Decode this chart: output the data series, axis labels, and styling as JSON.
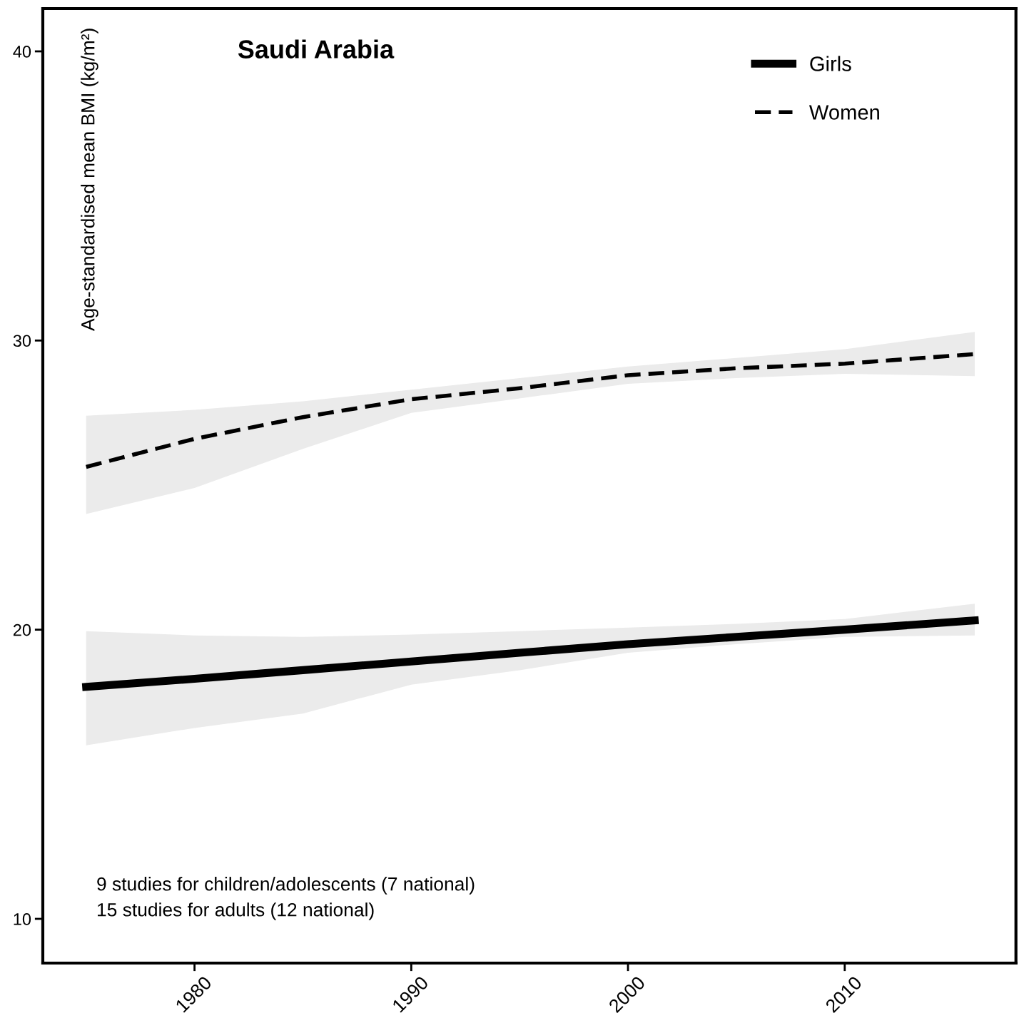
{
  "chart_data": {
    "type": "line",
    "title": "Saudi Arabia",
    "ylabel": "Age-standardised mean BMI (kg/m²)",
    "x": [
      1975,
      1980,
      1985,
      1990,
      1995,
      2000,
      2005,
      2010,
      2016
    ],
    "series": [
      {
        "name": "Girls",
        "color": "#000000",
        "line_style": "solid",
        "values": [
          18.02,
          18.3,
          18.6,
          18.9,
          19.2,
          19.5,
          19.75,
          20.0,
          20.32
        ],
        "lower": [
          16.0,
          16.6,
          17.1,
          18.1,
          18.6,
          19.2,
          19.5,
          19.75,
          19.8
        ],
        "upper": [
          19.95,
          19.8,
          19.75,
          19.83,
          19.95,
          20.07,
          20.2,
          20.37,
          20.9
        ]
      },
      {
        "name": "Women",
        "color": "#000000",
        "line_style": "dashed",
        "values": [
          25.63,
          26.6,
          27.35,
          27.97,
          28.35,
          28.8,
          29.04,
          29.2,
          29.53
        ],
        "lower": [
          24.0,
          24.9,
          26.25,
          27.5,
          28.0,
          28.5,
          28.7,
          28.85,
          28.77
        ],
        "upper": [
          27.4,
          27.6,
          27.9,
          28.3,
          28.7,
          29.1,
          29.4,
          29.7,
          30.3
        ]
      }
    ],
    "xlim": [
      1973,
      2017.9
    ],
    "ylim": [
      8.47,
      41.48
    ],
    "xticks": [
      1980,
      1990,
      2000,
      2010
    ],
    "yticks": [
      10,
      20,
      30,
      40
    ],
    "grid": false,
    "legend": "top right",
    "marker": "none",
    "annotations": [
      "9 studies for children/adolescents (7 national)\n15 studies for adults (12 national)"
    ]
  }
}
